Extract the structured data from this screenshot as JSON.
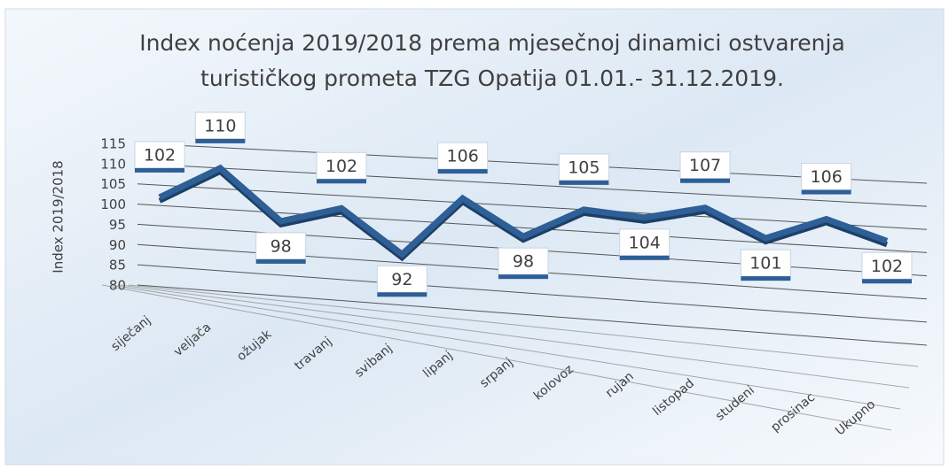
{
  "chart_data": {
    "type": "line3d",
    "title": [
      "Index noćenja 2019/2018 prema mjesečnoj dinamici ostvarenja",
      "turističkog prometa TZG Opatija 01.01.- 31.12.2019."
    ],
    "y_label": "Index 2019/2018",
    "categories": [
      "siječanj",
      "veljača",
      "ožujak",
      "travanj",
      "svibanj",
      "lipanj",
      "srpanj",
      "kolovoz",
      "rujan",
      "listopad",
      "studeni",
      "prosinac",
      "Ukupno"
    ],
    "values": [
      102,
      110,
      98,
      102,
      92,
      106,
      98,
      105,
      104,
      107,
      101,
      106,
      102
    ],
    "color": "#2e5f97",
    "ylim": [
      80,
      115
    ],
    "yticks": [
      80,
      85,
      90,
      95,
      100,
      105,
      110,
      115
    ],
    "grid": true
  }
}
